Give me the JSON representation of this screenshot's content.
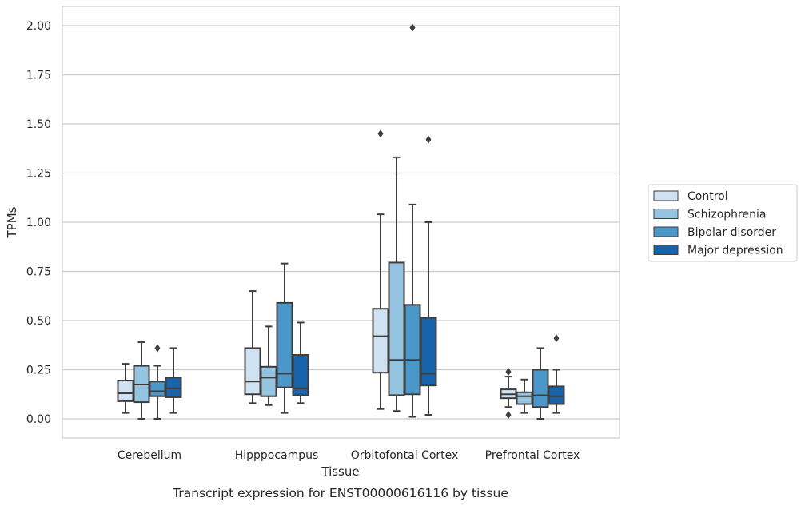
{
  "chart_data": {
    "type": "box",
    "title": "Transcript expression for ENST00000616116 by tissue",
    "xlabel": "Tissue",
    "ylabel": "TPMs",
    "ylim": [
      -0.1,
      2.1
    ],
    "yticks": [
      "0.00",
      "0.25",
      "0.50",
      "0.75",
      "1.00",
      "1.25",
      "1.50",
      "1.75",
      "2.00"
    ],
    "ytick_values": [
      0,
      0.25,
      0.5,
      0.75,
      1.0,
      1.25,
      1.5,
      1.75,
      2.0
    ],
    "grid": "horizontal",
    "legend_position": "right",
    "categories": [
      "Cerebellum",
      "Hipppocampus",
      "Orbitofontal Cortex",
      "Prefrontal Cortex"
    ],
    "series": [
      {
        "name": "Control",
        "color": "#d0e1f2",
        "boxes": [
          {
            "whislo": 0.03,
            "q1": 0.09,
            "med": 0.13,
            "q3": 0.195,
            "whishi": 0.28,
            "fliers": []
          },
          {
            "whislo": 0.08,
            "q1": 0.125,
            "med": 0.19,
            "q3": 0.36,
            "whishi": 0.65,
            "fliers": []
          },
          {
            "whislo": 0.05,
            "q1": 0.235,
            "med": 0.42,
            "q3": 0.56,
            "whishi": 1.04,
            "fliers": [
              1.45
            ]
          },
          {
            "whislo": 0.06,
            "q1": 0.105,
            "med": 0.125,
            "q3": 0.15,
            "whishi": 0.215,
            "fliers": [
              0.24,
              0.02
            ]
          }
        ]
      },
      {
        "name": "Schizophrenia",
        "color": "#94c4df",
        "boxes": [
          {
            "whislo": 0.0,
            "q1": 0.085,
            "med": 0.175,
            "q3": 0.27,
            "whishi": 0.39,
            "fliers": []
          },
          {
            "whislo": 0.07,
            "q1": 0.115,
            "med": 0.21,
            "q3": 0.265,
            "whishi": 0.47,
            "fliers": []
          },
          {
            "whislo": 0.04,
            "q1": 0.12,
            "med": 0.3,
            "q3": 0.795,
            "whishi": 1.33,
            "fliers": []
          },
          {
            "whislo": 0.03,
            "q1": 0.075,
            "med": 0.115,
            "q3": 0.135,
            "whishi": 0.2,
            "fliers": []
          }
        ]
      },
      {
        "name": "Bipolar disorder",
        "color": "#4a98c9",
        "boxes": [
          {
            "whislo": 0.0,
            "q1": 0.115,
            "med": 0.14,
            "q3": 0.19,
            "whishi": 0.27,
            "fliers": [
              0.36
            ]
          },
          {
            "whislo": 0.03,
            "q1": 0.16,
            "med": 0.23,
            "q3": 0.59,
            "whishi": 0.79,
            "fliers": []
          },
          {
            "whislo": 0.01,
            "q1": 0.125,
            "med": 0.3,
            "q3": 0.58,
            "whishi": 1.09,
            "fliers": [
              1.99
            ]
          },
          {
            "whislo": 0.0,
            "q1": 0.06,
            "med": 0.12,
            "q3": 0.25,
            "whishi": 0.36,
            "fliers": []
          }
        ]
      },
      {
        "name": "Major depression",
        "color": "#1764ab",
        "boxes": [
          {
            "whislo": 0.03,
            "q1": 0.11,
            "med": 0.155,
            "q3": 0.21,
            "whishi": 0.36,
            "fliers": []
          },
          {
            "whislo": 0.08,
            "q1": 0.12,
            "med": 0.155,
            "q3": 0.325,
            "whishi": 0.49,
            "fliers": []
          },
          {
            "whislo": 0.02,
            "q1": 0.17,
            "med": 0.23,
            "q3": 0.515,
            "whishi": 1.0,
            "fliers": [
              1.42
            ]
          },
          {
            "whislo": 0.03,
            "q1": 0.075,
            "med": 0.115,
            "q3": 0.165,
            "whishi": 0.25,
            "fliers": [
              0.41
            ]
          }
        ]
      }
    ]
  }
}
